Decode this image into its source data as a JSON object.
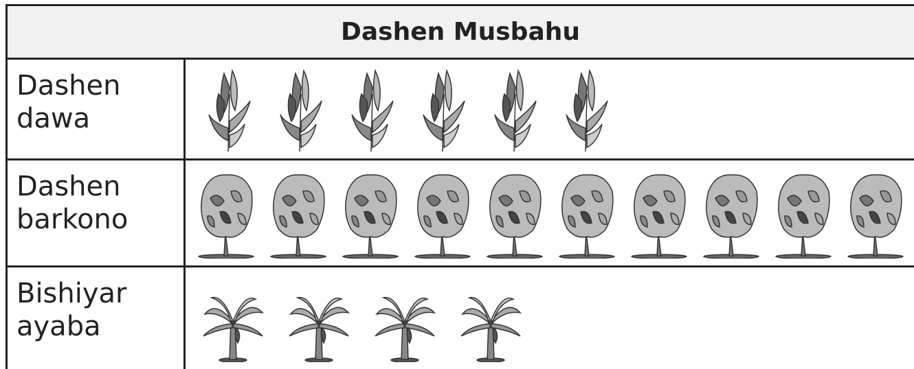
{
  "chart_data": {
    "type": "pictograph",
    "title": "Dashen Musbahu",
    "categories": [
      "Dashen dawa",
      "Dashen barkono",
      "Bishiyar ayaba"
    ],
    "values": [
      6,
      10,
      4
    ]
  }
}
